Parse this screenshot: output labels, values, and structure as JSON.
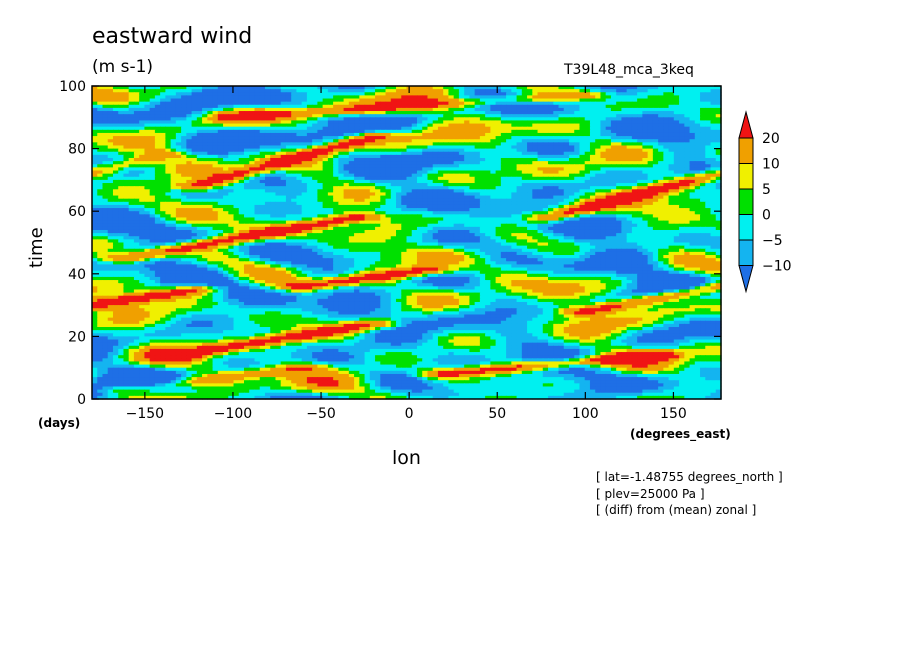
{
  "chart_data": {
    "type": "heatmap",
    "title": "eastward wind",
    "units": "(m s-1)",
    "run_label": "T39L48_mca_3keq",
    "xlabel": "lon",
    "ylabel": "time",
    "x_unit_label": "(degrees_east)",
    "y_unit_label": "(days)",
    "xlim": [
      -180,
      177
    ],
    "ylim": [
      0,
      100
    ],
    "x_ticks": [
      -150,
      -100,
      -50,
      0,
      50,
      100,
      150
    ],
    "y_ticks": [
      0,
      20,
      40,
      60,
      80,
      100
    ],
    "colorbar": {
      "levels": [
        -10,
        -5,
        0,
        5,
        10,
        20
      ],
      "labels": [
        "20",
        "10",
        "5",
        "0",
        "−5",
        "−10"
      ],
      "colors": [
        "#1e6fe6",
        "#14b4f0",
        "#00f0f0",
        "#00e000",
        "#f0f000",
        "#f0a000",
        "#f01414"
      ],
      "extend": "both"
    },
    "band_features": [
      {
        "lon_start": -160,
        "time_start": 3,
        "lon_end": -60,
        "time_end": 10,
        "value": 12
      },
      {
        "lon_start": -130,
        "time_start": 14,
        "lon_end": -20,
        "time_end": 24,
        "value": 22
      },
      {
        "lon_start": -180,
        "time_start": 30,
        "lon_end": -120,
        "time_end": 35,
        "value": 22
      },
      {
        "lon_start": -60,
        "time_start": 36,
        "lon_end": 10,
        "time_end": 41,
        "value": 22
      },
      {
        "lon_start": -160,
        "time_start": 45,
        "lon_end": -30,
        "time_end": 58,
        "value": 22
      },
      {
        "lon_start": -120,
        "time_start": 68,
        "lon_end": -20,
        "time_end": 84,
        "value": 22
      },
      {
        "lon_start": 80,
        "time_start": 58,
        "lon_end": 177,
        "time_end": 72,
        "value": 22
      },
      {
        "lon_start": 100,
        "time_start": 28,
        "lon_end": 177,
        "time_end": 36,
        "value": 22
      },
      {
        "lon_start": -180,
        "time_start": 72,
        "lon_end": -140,
        "time_end": 78,
        "value": 12
      },
      {
        "lon_start": 20,
        "time_start": 8,
        "lon_end": 140,
        "time_end": 14,
        "value": 22
      },
      {
        "lon_start": -100,
        "time_start": 90,
        "lon_end": 100,
        "time_end": 97,
        "value": 12
      }
    ]
  },
  "annotations": [
    "[ lat=-1.48755 degrees_north ]",
    "[ plev=25000 Pa ]",
    "[ (diff) from (mean) zonal ]"
  ]
}
